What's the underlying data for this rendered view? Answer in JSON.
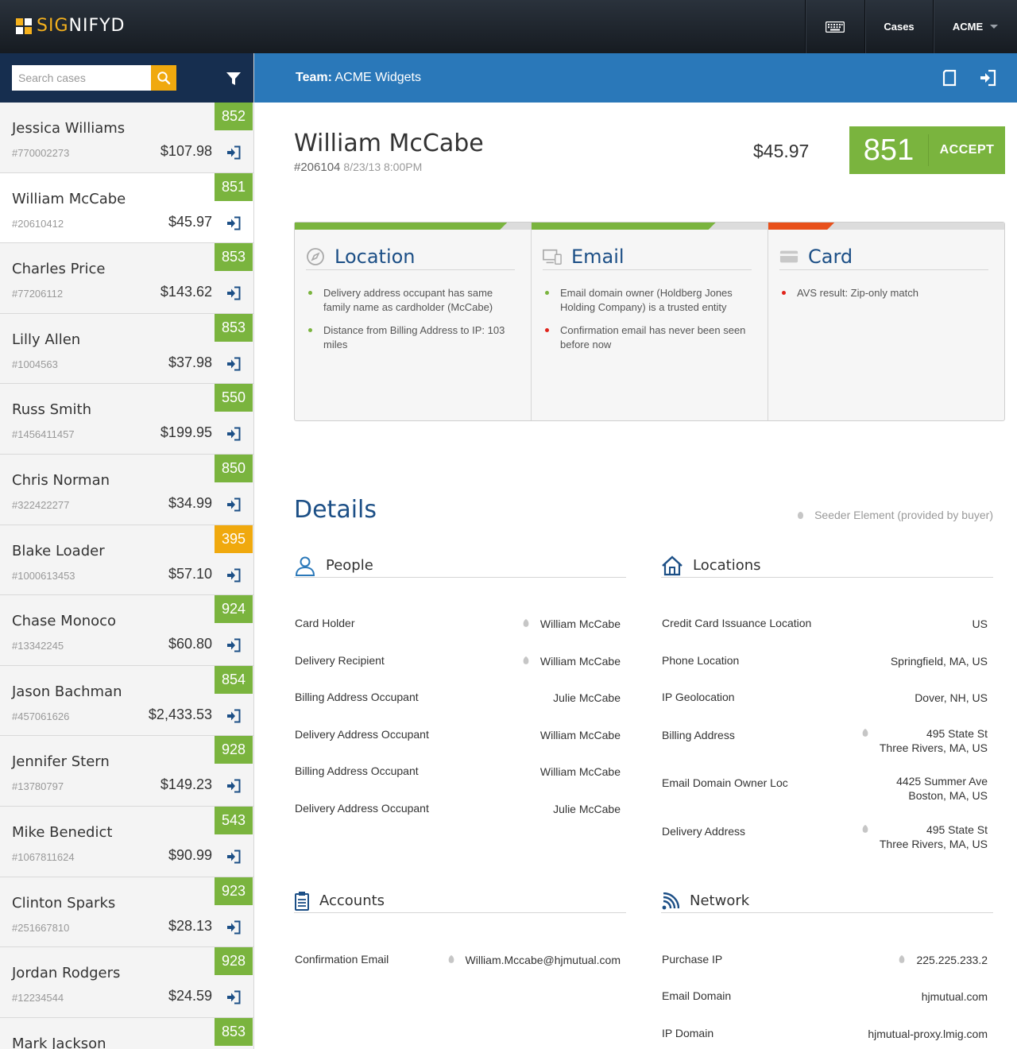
{
  "brand": {
    "name_a": "SIG",
    "name_b": "NIFYD"
  },
  "topnav": {
    "cases_label": "Cases",
    "account_label": "ACME"
  },
  "search": {
    "placeholder": "Search cases"
  },
  "cases": [
    {
      "name": "Jessica Williams",
      "id": "#770002273",
      "amount": "$107.98",
      "score": "852",
      "status": "good"
    },
    {
      "name": "William McCabe",
      "id": "#20610412",
      "amount": "$45.97",
      "score": "851",
      "status": "good"
    },
    {
      "name": "Charles Price",
      "id": "#77206112",
      "amount": "$143.62",
      "score": "853",
      "status": "good"
    },
    {
      "name": "Lilly Allen",
      "id": "#1004563",
      "amount": "$37.98",
      "score": "853",
      "status": "good"
    },
    {
      "name": "Russ Smith",
      "id": "#1456411457",
      "amount": "$199.95",
      "score": "550",
      "status": "good"
    },
    {
      "name": "Chris Norman",
      "id": "#322422277",
      "amount": "$34.99",
      "score": "850",
      "status": "good"
    },
    {
      "name": "Blake Loader",
      "id": "#1000613453",
      "amount": "$57.10",
      "score": "395",
      "status": "warn"
    },
    {
      "name": "Chase Monoco",
      "id": "#13342245",
      "amount": "$60.80",
      "score": "924",
      "status": "good"
    },
    {
      "name": "Jason Bachman",
      "id": "#457061626",
      "amount": "$2,433.53",
      "score": "854",
      "status": "good"
    },
    {
      "name": "Jennifer Stern",
      "id": "#13780797",
      "amount": "$149.23",
      "score": "928",
      "status": "good"
    },
    {
      "name": "Mike Benedict",
      "id": "#1067811624",
      "amount": "$90.99",
      "score": "543",
      "status": "good"
    },
    {
      "name": "Clinton Sparks",
      "id": "#251667810",
      "amount": "$28.13",
      "score": "923",
      "status": "good"
    },
    {
      "name": "Jordan Rodgers",
      "id": "#12234544",
      "amount": "$24.59",
      "score": "928",
      "status": "good"
    },
    {
      "name": "Mark Jackson",
      "id": "",
      "amount": "",
      "score": "853",
      "status": "good"
    }
  ],
  "team": {
    "label": "Team:",
    "name": "ACME Widgets"
  },
  "customer": {
    "name": "William McCabe",
    "order_id": "#206104",
    "datetime": "8/23/13 8:00PM",
    "amount": "$45.97"
  },
  "decision": {
    "score": "851",
    "action_label": "ACCEPT"
  },
  "colors": {
    "good": "#7ab43e",
    "warn": "#f0a90e",
    "bad": "#e8501b",
    "accent": "#2a78b9"
  },
  "signals": [
    {
      "title": "Location",
      "icon": "compass-icon",
      "progress": 0.9,
      "color": "#7ab43e",
      "items": [
        {
          "text": "Delivery address occupant has same family name as cardholder (McCabe)",
          "status": "good"
        },
        {
          "text": "Distance from Billing Address to IP: 103 miles",
          "status": "good"
        }
      ]
    },
    {
      "title": "Email",
      "icon": "devices-icon",
      "progress": 0.78,
      "color": "#7ab43e",
      "items": [
        {
          "text": "Email domain owner (Holdberg Jones Holding Company) is a trusted entity",
          "status": "good"
        },
        {
          "text": "Confirmation email has never been seen before now",
          "status": "bad"
        }
      ]
    },
    {
      "title": "Card",
      "icon": "credit-card-icon",
      "progress": 0.28,
      "color": "#e8501b",
      "items": [
        {
          "text": "AVS result: Zip-only match",
          "status": "bad"
        }
      ]
    }
  ],
  "details": {
    "title": "Details",
    "legend": "Seeder Element (provided by buyer)",
    "people": {
      "title": "People",
      "rows": [
        {
          "label": "Card Holder",
          "value": "William McCabe",
          "seed": true
        },
        {
          "label": "Delivery Recipient",
          "value": "William McCabe",
          "seed": true
        },
        {
          "label": "Billing Address Occupant",
          "value": "Julie McCabe",
          "seed": false
        },
        {
          "label": "Delivery Address Occupant",
          "value": "William McCabe",
          "seed": false
        },
        {
          "label": "Billing Address Occupant",
          "value": "William McCabe",
          "seed": false
        },
        {
          "label": "Delivery Address Occupant",
          "value": "Julie McCabe",
          "seed": false
        }
      ]
    },
    "locations": {
      "title": "Locations",
      "rows": [
        {
          "label": "Credit Card Issuance Location",
          "value": "US",
          "value2": "",
          "seed": false
        },
        {
          "label": "Phone Location",
          "value": "Springfield, MA, US",
          "value2": "",
          "seed": false
        },
        {
          "label": "IP Geolocation",
          "value": "Dover, NH, US",
          "value2": "",
          "seed": false
        },
        {
          "label": "Billing Address",
          "value": "495 State St",
          "value2": "Three Rivers, MA, US",
          "seed": true
        },
        {
          "label": "Email Domain Owner Loc",
          "value": "4425 Summer Ave",
          "value2": "Boston, MA, US",
          "seed": false
        },
        {
          "label": "Delivery Address",
          "value": "495 State St",
          "value2": "Three Rivers, MA, US",
          "seed": true
        }
      ]
    },
    "accounts": {
      "title": "Accounts",
      "rows": [
        {
          "label": "Confirmation Email",
          "value": "William.Mccabe@hjmutual.com",
          "seed": true
        }
      ]
    },
    "network": {
      "title": "Network",
      "rows": [
        {
          "label": "Purchase IP",
          "value": "225.225.233.2",
          "seed": true
        },
        {
          "label": "Email Domain",
          "value": "hjmutual.com",
          "seed": false
        },
        {
          "label": "IP Domain",
          "value": "hjmutual-proxy.lmig.com",
          "seed": false
        }
      ]
    }
  }
}
